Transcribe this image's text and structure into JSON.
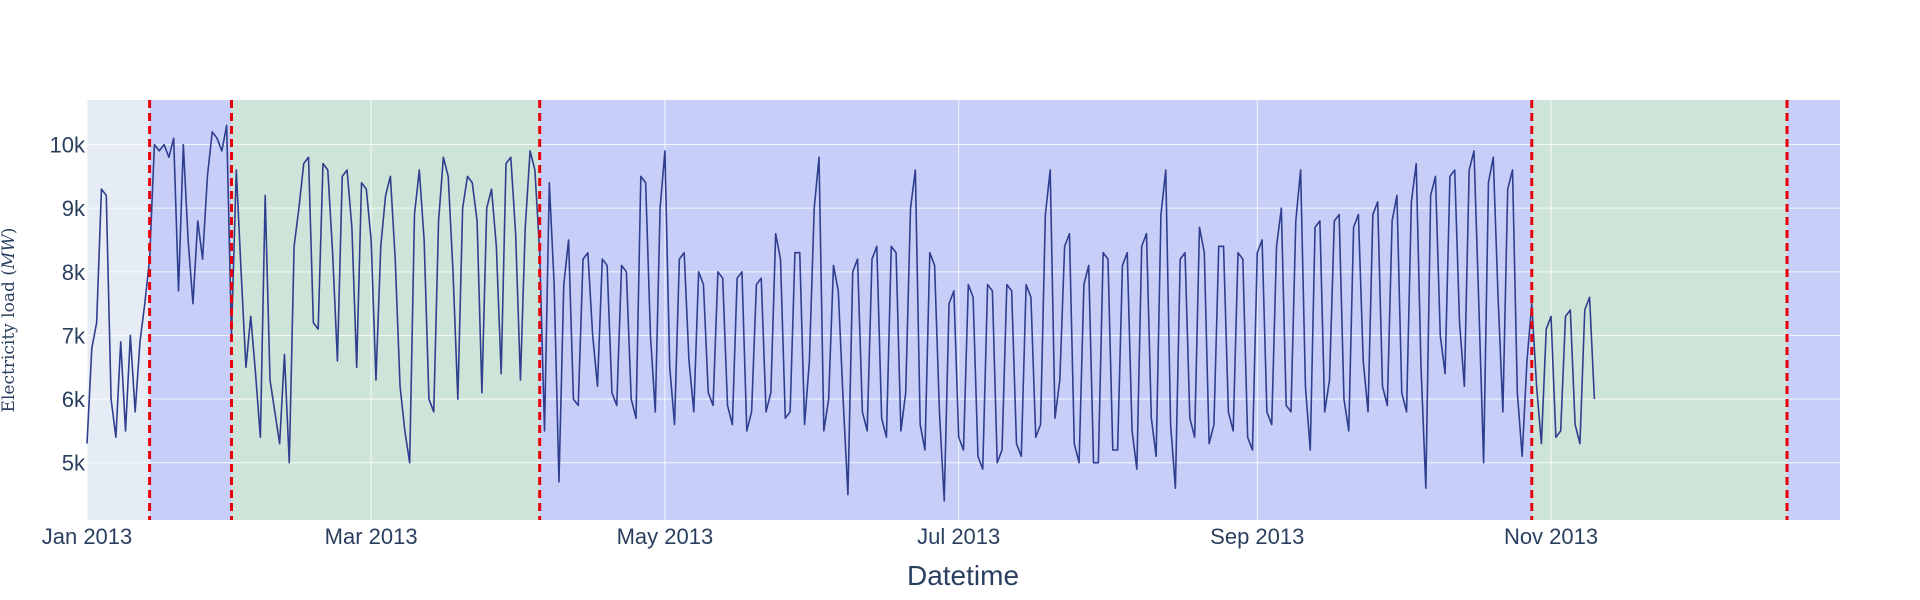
{
  "chart_data": {
    "type": "line",
    "title": "",
    "xlabel": "Datetime",
    "ylabel": "Electricity load (MW)",
    "ylabel_prefix": "Electricity load (",
    "ylabel_unit": "MW",
    "ylabel_suffix": ")",
    "xlim": [
      "2013-01-01",
      "2013-12-31"
    ],
    "ylim": [
      4100,
      10700
    ],
    "x_ticks": [
      {
        "date": "2013-01-01",
        "label": "Jan 2013"
      },
      {
        "date": "2013-03-01",
        "label": "Mar 2013"
      },
      {
        "date": "2013-05-01",
        "label": "May 2013"
      },
      {
        "date": "2013-07-01",
        "label": "Jul 2013"
      },
      {
        "date": "2013-09-01",
        "label": "Sep 2013"
      },
      {
        "date": "2013-11-01",
        "label": "Nov 2013"
      }
    ],
    "y_ticks": [
      {
        "value": 5000,
        "label": "5k"
      },
      {
        "value": 6000,
        "label": "6k"
      },
      {
        "value": 7000,
        "label": "7k"
      },
      {
        "value": 8000,
        "label": "8k"
      },
      {
        "value": 9000,
        "label": "9k"
      },
      {
        "value": 10000,
        "label": "10k"
      }
    ],
    "grid": true,
    "legend": "none",
    "colors": {
      "plot_background": "#e5ecf6",
      "line": "#2f3e8e",
      "vline": "#e8000b",
      "region_blue": "#b3bdfa",
      "region_green": "#bfe0c4",
      "text": "#2a3f5f"
    },
    "regions": [
      {
        "x0": "2013-01-14",
        "x1": "2013-01-31",
        "color": "blue"
      },
      {
        "x0": "2013-01-31",
        "x1": "2013-04-05",
        "color": "green"
      },
      {
        "x0": "2013-04-05",
        "x1": "2013-10-28",
        "color": "blue"
      },
      {
        "x0": "2013-10-28",
        "x1": "2013-12-20",
        "color": "green"
      },
      {
        "x0": "2013-12-20",
        "x1": "2013-12-31",
        "color": "blue"
      }
    ],
    "vlines": [
      "2013-01-14",
      "2013-01-31",
      "2013-04-05",
      "2013-10-28",
      "2013-12-20"
    ],
    "series": [
      {
        "x_start": "2013-01-01",
        "x_step_days": 1,
        "values": [
          5300,
          6800,
          7200,
          9300,
          9200,
          6000,
          5400,
          6900,
          5500,
          7000,
          5800,
          6900,
          7500,
          8200,
          10000,
          9900,
          10000,
          9800,
          10100,
          7700,
          10000,
          8500,
          7500,
          8800,
          8200,
          9500,
          10200,
          10100,
          9900,
          10300,
          7000,
          9600,
          8000,
          6500,
          7300,
          6400,
          5400,
          9200,
          6300,
          5800,
          5300,
          6700,
          5000,
          8400,
          9000,
          9700,
          9800,
          7200,
          7100,
          9700,
          9600,
          8300,
          6600,
          9500,
          9600,
          8700,
          6500,
          9400,
          9300,
          8500,
          6300,
          8400,
          9200,
          9500,
          8200,
          6200,
          5500,
          5000,
          8900,
          9600,
          8500,
          6000,
          5800,
          8800,
          9800,
          9500,
          8000,
          6000,
          9000,
          9500,
          9400,
          8800,
          6100,
          9000,
          9300,
          8400,
          6400,
          9700,
          9800,
          8600,
          6300,
          8700,
          9900,
          9600,
          8300,
          5500,
          9400,
          7800,
          4700,
          7800,
          8500,
          6000,
          5900,
          8200,
          8300,
          7000,
          6200,
          8200,
          8100,
          6100,
          5900,
          8100,
          8000,
          6000,
          5700,
          9500,
          9400,
          7000,
          5800,
          9000,
          9900,
          6500,
          5600,
          8200,
          8300,
          6600,
          5800,
          8000,
          7800,
          6100,
          5900,
          8000,
          7900,
          5900,
          5600,
          7900,
          8000,
          5500,
          5800,
          7800,
          7900,
          5800,
          6100,
          8600,
          8200,
          5700,
          5800,
          8300,
          8300,
          5600,
          6600,
          9000,
          9800,
          5500,
          6000,
          8100,
          7700,
          6000,
          4500,
          8000,
          8200,
          5800,
          5500,
          8200,
          8400,
          5700,
          5400,
          8400,
          8300,
          5500,
          6100,
          9000,
          9600,
          5600,
          5200,
          8300,
          8100,
          5800,
          4400,
          7500,
          7700,
          5400,
          5200,
          7800,
          7600,
          5100,
          4900,
          7800,
          7700,
          5000,
          5200,
          7800,
          7700,
          5300,
          5100,
          7800,
          7600,
          5400,
          5600,
          8900,
          9600,
          5700,
          6300,
          8400,
          8600,
          5300,
          5000,
          7800,
          8100,
          5000,
          5000,
          8300,
          8200,
          5200,
          5200,
          8100,
          8300,
          5500,
          4900,
          8400,
          8600,
          5700,
          5100,
          8900,
          9600,
          5600,
          4600,
          8200,
          8300,
          5700,
          5400,
          8700,
          8300,
          5300,
          5600,
          8400,
          8400,
          5800,
          5500,
          8300,
          8200,
          5400,
          5200,
          8300,
          8500,
          5800,
          5600,
          8400,
          9000,
          5900,
          5800,
          8800,
          9600,
          6200,
          5200,
          8700,
          8800,
          5800,
          6300,
          8800,
          8900,
          6000,
          5500,
          8700,
          8900,
          6600,
          5800,
          8900,
          9100,
          6200,
          5900,
          8800,
          9200,
          6100,
          5800,
          9100,
          9700,
          6500,
          4600,
          9200,
          9500,
          7000,
          6400,
          9500,
          9600,
          7200,
          6200,
          9600,
          9900,
          7500,
          5000,
          9400,
          9800,
          7600,
          5800,
          9300,
          9600,
          6100,
          5100,
          6600,
          7500,
          6200,
          5300,
          7100,
          7300,
          5400,
          5500,
          7300,
          7400,
          5600,
          5300,
          7400,
          7600,
          6000
        ]
      }
    ]
  }
}
